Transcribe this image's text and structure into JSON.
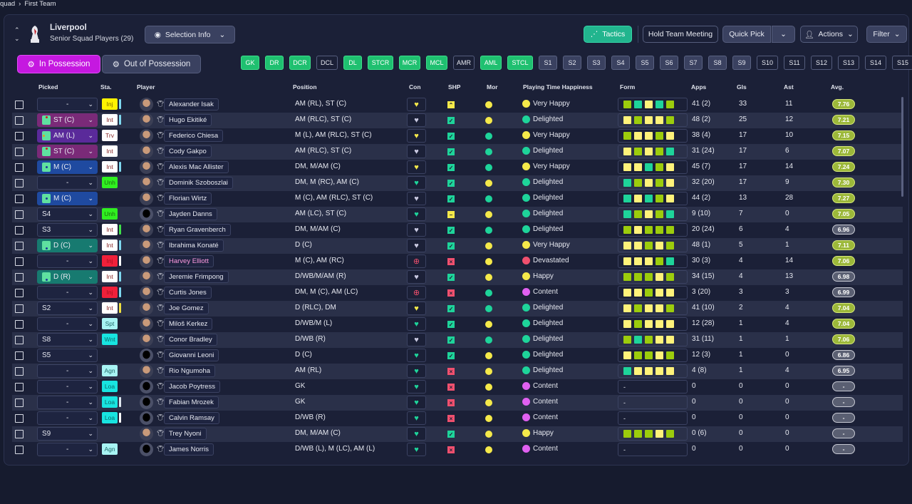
{
  "breadcrumb": {
    "parent": "quad",
    "current": "First Team"
  },
  "club": {
    "name": "Liverpool",
    "subtitle": "Senior Squad Players (29)"
  },
  "toolbar": {
    "selection_info": "Selection Info",
    "tactics": "Tactics",
    "hold_meeting": "Hold Team Meeting",
    "quick_pick": "Quick Pick",
    "actions": "Actions",
    "filter": "Filter"
  },
  "tabs": {
    "in_possession": "In Possession",
    "out_of_possession": "Out of Possession"
  },
  "position_buttons": [
    {
      "label": "GK",
      "state": "filled"
    },
    {
      "label": "DR",
      "state": "filled"
    },
    {
      "label": "DCR",
      "state": "filled"
    },
    {
      "label": "DCL",
      "state": "empty"
    },
    {
      "label": "DL",
      "state": "filled"
    },
    {
      "label": "STCR",
      "state": "filled"
    },
    {
      "label": "MCR",
      "state": "filled"
    },
    {
      "label": "MCL",
      "state": "filled"
    },
    {
      "label": "AMR",
      "state": "empty"
    },
    {
      "label": "AML",
      "state": "filled"
    },
    {
      "label": "STCL",
      "state": "filled"
    },
    {
      "label": "S1",
      "state": "sub"
    },
    {
      "label": "S2",
      "state": "sub"
    },
    {
      "label": "S3",
      "state": "sub"
    },
    {
      "label": "S4",
      "state": "sub"
    },
    {
      "label": "S5",
      "state": "sub"
    },
    {
      "label": "S6",
      "state": "sub"
    },
    {
      "label": "S7",
      "state": "sub"
    },
    {
      "label": "S8",
      "state": "sub"
    },
    {
      "label": "S9",
      "state": "sub"
    },
    {
      "label": "S10",
      "state": "empty"
    },
    {
      "label": "S11",
      "state": "empty"
    },
    {
      "label": "S12",
      "state": "empty"
    },
    {
      "label": "S13",
      "state": "empty"
    },
    {
      "label": "S14",
      "state": "empty"
    },
    {
      "label": "S15",
      "state": "empty"
    }
  ],
  "columns": {
    "picked": "Picked",
    "sta": "Sta.",
    "player": "Player",
    "position": "Position",
    "con": "Con",
    "shp": "SHP",
    "mor": "Mor",
    "pth": "Playing Time Happiness",
    "form": "Form",
    "apps": "Apps",
    "gls": "Gls",
    "ast": "Ast",
    "avg": "Avg."
  },
  "colors": {
    "accent_magenta": "#c518e0",
    "green": "#1fc070",
    "teal": "#22b58e",
    "form_yellow": "#fff27a",
    "form_lime": "#9ccc0c",
    "form_teal": "#1ed49a"
  },
  "players": [
    {
      "picked": "-",
      "pc": "",
      "sta": "Inj",
      "sc": "yel",
      "bar": "#7fd9f0",
      "name": "Alexander Isak",
      "pos": "AM (RL), ST (C)",
      "con": "y",
      "shp": "up",
      "mor": "y",
      "pth": "Very Happy",
      "mood": "y",
      "form": "gtytg",
      "apps": "41 (2)",
      "gls": "33",
      "ast": "11",
      "avg": "7.76"
    },
    {
      "picked": "ST (C)",
      "pc": "st",
      "sta": "Int",
      "sc": "wht",
      "bar": "#7fd9f0",
      "name": "Hugo Ekitiké",
      "pos": "AM (RLC), ST (C)",
      "con": "w",
      "shp": "ok",
      "mor": "y",
      "pth": "Delighted",
      "mood": "t",
      "form": "ygyyg",
      "apps": "48 (2)",
      "gls": "25",
      "ast": "12",
      "avg": "7.21"
    },
    {
      "picked": "AM (L)",
      "pc": "am",
      "sta": "Trv",
      "sc": "wht",
      "bar": "",
      "name": "Federico Chiesa",
      "pos": "M (L), AM (RLC), ST (C)",
      "con": "y",
      "shp": "ok",
      "mor": "t",
      "pth": "Very Happy",
      "mood": "y",
      "form": "gyygy",
      "apps": "38 (4)",
      "gls": "17",
      "ast": "10",
      "avg": "7.15"
    },
    {
      "picked": "ST (C)",
      "pc": "st",
      "sta": "Int",
      "sc": "wht",
      "bar": "",
      "name": "Cody Gakpo",
      "pos": "AM (RLC), ST (C)",
      "con": "w",
      "shp": "ok",
      "mor": "t",
      "pth": "Delighted",
      "mood": "t",
      "form": "ygygt",
      "apps": "31 (24)",
      "gls": "17",
      "ast": "6",
      "avg": "7.07"
    },
    {
      "picked": "M (C)",
      "pc": "m",
      "sta": "Int",
      "sc": "wht",
      "bar": "#7fd9f0",
      "name": "Alexis Mac Allister",
      "pos": "DM, M/AM (C)",
      "con": "y",
      "shp": "ok",
      "mor": "t",
      "pth": "Very Happy",
      "mood": "y",
      "form": "yytgy",
      "apps": "45 (7)",
      "gls": "17",
      "ast": "14",
      "avg": "7.24"
    },
    {
      "picked": "-",
      "pc": "",
      "sta": "Unh",
      "sc": "grn",
      "bar": "",
      "name": "Dominik Szoboszlai",
      "pos": "DM, M (RC), AM (C)",
      "con": "t",
      "shp": "ok",
      "mor": "y",
      "pth": "Delighted",
      "mood": "t",
      "form": "tgygy",
      "apps": "32 (20)",
      "gls": "17",
      "ast": "9",
      "avg": "7.30"
    },
    {
      "picked": "M (C)",
      "pc": "m",
      "sta": "",
      "sc": "",
      "bar": "",
      "name": "Florian Wirtz",
      "pos": "M (C), AM (RLC), ST (C)",
      "con": "w",
      "shp": "ok",
      "mor": "t",
      "pth": "Delighted",
      "mood": "t",
      "form": "tytgy",
      "apps": "44 (2)",
      "gls": "13",
      "ast": "28",
      "avg": "7.27"
    },
    {
      "picked": "S4",
      "pc": "",
      "sta": "Unh",
      "sc": "grn",
      "bar": "",
      "name": "Jayden Danns",
      "pos": "AM (LC), ST (C)",
      "con": "t",
      "shp": "mid",
      "mor": "y",
      "pth": "Delighted",
      "mood": "t",
      "form": "tgygt",
      "apps": "9 (10)",
      "gls": "7",
      "ast": "0",
      "avg": "7.05",
      "sil": true
    },
    {
      "picked": "S3",
      "pc": "",
      "sta": "Int",
      "sc": "wht",
      "bar": "#3ee04a",
      "name": "Ryan Gravenberch",
      "pos": "DM, M/AM (C)",
      "con": "w",
      "shp": "ok",
      "mor": "t",
      "pth": "Delighted",
      "mood": "t",
      "form": "gyggg",
      "apps": "20 (24)",
      "gls": "6",
      "ast": "4",
      "avg": "6.96"
    },
    {
      "picked": "D (C)",
      "pc": "d",
      "sta": "Int",
      "sc": "wht",
      "bar": "#7fd9f0",
      "name": "Ibrahima Konaté",
      "pos": "D (C)",
      "con": "w",
      "shp": "ok",
      "mor": "y",
      "pth": "Very Happy",
      "mood": "y",
      "form": "yygyg",
      "apps": "48 (1)",
      "gls": "5",
      "ast": "1",
      "avg": "7.11"
    },
    {
      "picked": "-",
      "pc": "",
      "sta": "Inj",
      "sc": "red",
      "bar": "#ffffff",
      "name": "Harvey Elliott",
      "pink": true,
      "pos": "M (C), AM (RC)",
      "con": "r",
      "shp": "x",
      "mor": "y",
      "pth": "Devastated",
      "mood": "r",
      "form": "yyygt",
      "apps": "30 (3)",
      "gls": "4",
      "ast": "14",
      "avg": "7.06"
    },
    {
      "picked": "D (R)",
      "pc": "d",
      "sta": "Int",
      "sc": "wht",
      "bar": "#7fd9f0",
      "name": "Jeremie Frimpong",
      "pos": "D/WB/M/AM (R)",
      "con": "w",
      "shp": "ok",
      "mor": "y",
      "pth": "Happy",
      "mood": "y",
      "form": "gggyg",
      "apps": "34 (15)",
      "gls": "4",
      "ast": "13",
      "avg": "6.98"
    },
    {
      "picked": "-",
      "pc": "",
      "sta": "Inj",
      "sc": "red",
      "bar": "#7fd9f0",
      "name": "Curtis Jones",
      "pos": "DM, M (C), AM (LC)",
      "con": "r",
      "shp": "x",
      "mor": "t",
      "pth": "Content",
      "mood": "p",
      "form": "yygyy",
      "apps": "3 (20)",
      "gls": "3",
      "ast": "3",
      "avg": "6.99"
    },
    {
      "picked": "S2",
      "pc": "",
      "sta": "Int",
      "sc": "wht",
      "bar": "#f0e040",
      "name": "Joe Gomez",
      "pos": "D (RLC), DM",
      "con": "y",
      "shp": "ok",
      "mor": "t",
      "pth": "Delighted",
      "mood": "t",
      "form": "ygyyg",
      "apps": "41 (10)",
      "gls": "2",
      "ast": "4",
      "avg": "7.04"
    },
    {
      "picked": "-",
      "pc": "",
      "sta": "Spt",
      "sc": "lcy",
      "bar": "",
      "name": "Miloš Kerkez",
      "pos": "D/WB/M (L)",
      "con": "t",
      "shp": "ok",
      "mor": "y",
      "pth": "Delighted",
      "mood": "t",
      "form": "ygyyy",
      "apps": "12 (28)",
      "gls": "1",
      "ast": "4",
      "avg": "7.04"
    },
    {
      "picked": "S8",
      "pc": "",
      "sta": "Wnt",
      "sc": "cyn",
      "bar": "",
      "name": "Conor Bradley",
      "pos": "D/WB (R)",
      "con": "w",
      "shp": "ok",
      "mor": "t",
      "pth": "Delighted",
      "mood": "t",
      "form": "gtgyy",
      "apps": "31 (11)",
      "gls": "1",
      "ast": "1",
      "avg": "7.06"
    },
    {
      "picked": "S5",
      "pc": "",
      "sta": "",
      "sc": "",
      "bar": "",
      "name": "Giovanni Leoni",
      "pos": "D (C)",
      "con": "t",
      "shp": "ok",
      "mor": "y",
      "pth": "Delighted",
      "mood": "t",
      "form": "yggyg",
      "apps": "12 (3)",
      "gls": "1",
      "ast": "0",
      "avg": "6.86",
      "sil": true
    },
    {
      "picked": "-",
      "pc": "",
      "sta": "Agn",
      "sc": "lcy",
      "bar": "",
      "name": "Rio Ngumoha",
      "pos": "AM (RL)",
      "con": "t",
      "shp": "x",
      "mor": "y",
      "pth": "Delighted",
      "mood": "t",
      "form": "tyyyy",
      "apps": "4 (8)",
      "gls": "1",
      "ast": "4",
      "avg": "6.95"
    },
    {
      "picked": "-",
      "pc": "",
      "sta": "Loa",
      "sc": "cyn",
      "bar": "",
      "name": "Jacob Poytress",
      "pos": "GK",
      "con": "t",
      "shp": "x",
      "mor": "y",
      "pth": "Content",
      "mood": "p",
      "form": "",
      "apps": "0",
      "gls": "0",
      "ast": "0",
      "avg": "-",
      "sil": true
    },
    {
      "picked": "-",
      "pc": "",
      "sta": "Loa",
      "sc": "cyn",
      "bar": "#e0e8f0",
      "name": "Fabian Mrozek",
      "pos": "GK",
      "con": "t",
      "shp": "x",
      "mor": "y",
      "pth": "Content",
      "mood": "p",
      "form": "",
      "apps": "0",
      "gls": "0",
      "ast": "0",
      "avg": "-",
      "sil": true
    },
    {
      "picked": "-",
      "pc": "",
      "sta": "Loa",
      "sc": "cyn",
      "bar": "#ffffff",
      "name": "Calvin Ramsay",
      "pos": "D/WB (R)",
      "con": "t",
      "shp": "x",
      "mor": "y",
      "pth": "Content",
      "mood": "p",
      "form": "",
      "apps": "0",
      "gls": "0",
      "ast": "0",
      "avg": "-",
      "sil": true
    },
    {
      "picked": "S9",
      "pc": "",
      "sta": "",
      "sc": "",
      "bar": "",
      "name": "Trey Nyoni",
      "pos": "DM, M/AM (C)",
      "con": "t",
      "shp": "ok",
      "mor": "y",
      "pth": "Happy",
      "mood": "y",
      "form": "gggyg",
      "apps": "0 (6)",
      "gls": "0",
      "ast": "0",
      "avg": "-"
    },
    {
      "picked": "-",
      "pc": "",
      "sta": "Agn",
      "sc": "lcy",
      "bar": "",
      "name": "James Norris",
      "pos": "D/WB (L), M (LC), AM (L)",
      "con": "t",
      "shp": "x",
      "mor": "y",
      "pth": "Content",
      "mood": "p",
      "form": "",
      "apps": "0",
      "gls": "0",
      "ast": "0",
      "avg": "-",
      "sil": true
    }
  ]
}
